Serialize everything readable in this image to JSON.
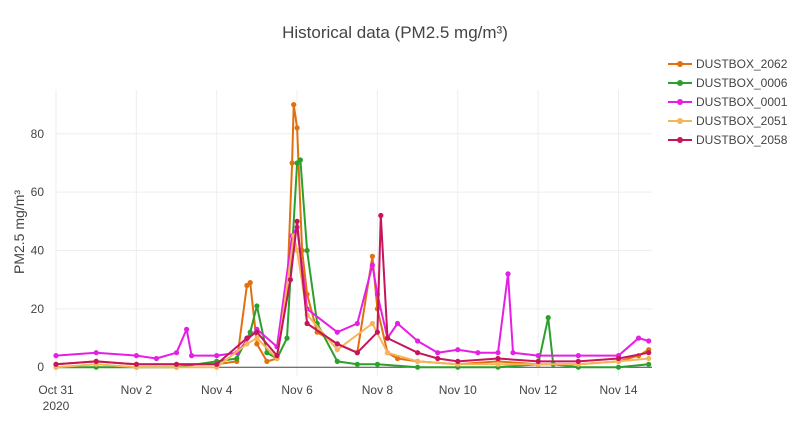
{
  "chart_data": {
    "type": "line",
    "title": "Historical data (PM2.5 mg/m³)",
    "xlabel": "",
    "ylabel": "PM2.5 mg/m³",
    "x_range": [
      "2020-10-31",
      "2020-11-14T20:00"
    ],
    "ylim": [
      -3,
      95
    ],
    "y_ticks": [
      0,
      20,
      40,
      60,
      80
    ],
    "x_ticks": [
      {
        "date": "2020-10-31",
        "label": "Oct 31",
        "sublabel": "2020"
      },
      {
        "date": "2020-11-02",
        "label": "Nov 2"
      },
      {
        "date": "2020-11-04",
        "label": "Nov 4"
      },
      {
        "date": "2020-11-06",
        "label": "Nov 6"
      },
      {
        "date": "2020-11-08",
        "label": "Nov 8"
      },
      {
        "date": "2020-11-10",
        "label": "Nov 10"
      },
      {
        "date": "2020-11-12",
        "label": "Nov 12"
      },
      {
        "date": "2020-11-14",
        "label": "Nov 14"
      }
    ],
    "grid": true,
    "legend_position": "right",
    "series": [
      {
        "name": "DUSTBOX_2062",
        "color": "#e1700f",
        "points": [
          [
            "2020-10-31T00:00",
            1
          ],
          [
            "2020-11-01T00:00",
            2
          ],
          [
            "2020-11-02T00:00",
            1
          ],
          [
            "2020-11-03T00:00",
            1
          ],
          [
            "2020-11-04T00:00",
            1
          ],
          [
            "2020-11-04T12:00",
            2
          ],
          [
            "2020-11-04T18:00",
            28
          ],
          [
            "2020-11-04T20:00",
            29
          ],
          [
            "2020-11-05T00:00",
            8
          ],
          [
            "2020-11-05T06:00",
            2
          ],
          [
            "2020-11-05T12:00",
            3
          ],
          [
            "2020-11-05T18:00",
            25
          ],
          [
            "2020-11-05T21:00",
            70
          ],
          [
            "2020-11-05T22:00",
            90
          ],
          [
            "2020-11-06T00:00",
            82
          ],
          [
            "2020-11-06T03:00",
            40
          ],
          [
            "2020-11-06T06:00",
            25
          ],
          [
            "2020-11-06T12:00",
            12
          ],
          [
            "2020-11-07T00:00",
            8
          ],
          [
            "2020-11-07T12:00",
            5
          ],
          [
            "2020-11-07T21:00",
            38
          ],
          [
            "2020-11-08T00:00",
            20
          ],
          [
            "2020-11-08T06:00",
            5
          ],
          [
            "2020-11-08T12:00",
            3
          ],
          [
            "2020-11-09T00:00",
            2
          ],
          [
            "2020-11-10T00:00",
            1
          ],
          [
            "2020-11-11T00:00",
            2
          ],
          [
            "2020-11-12T00:00",
            1
          ],
          [
            "2020-11-13T00:00",
            1
          ],
          [
            "2020-11-14T00:00",
            2
          ],
          [
            "2020-11-14T12:00",
            4
          ],
          [
            "2020-11-14T18:00",
            6
          ]
        ]
      },
      {
        "name": "DUSTBOX_0006",
        "color": "#2ca02c",
        "points": [
          [
            "2020-10-31T00:00",
            0
          ],
          [
            "2020-11-01T00:00",
            0
          ],
          [
            "2020-11-02T00:00",
            0
          ],
          [
            "2020-11-03T00:00",
            0
          ],
          [
            "2020-11-04T00:00",
            2
          ],
          [
            "2020-11-04T12:00",
            3
          ],
          [
            "2020-11-04T20:00",
            12
          ],
          [
            "2020-11-05T00:00",
            21
          ],
          [
            "2020-11-05T06:00",
            5
          ],
          [
            "2020-11-05T12:00",
            3
          ],
          [
            "2020-11-05T18:00",
            10
          ],
          [
            "2020-11-06T00:00",
            70
          ],
          [
            "2020-11-06T02:00",
            71
          ],
          [
            "2020-11-06T06:00",
            40
          ],
          [
            "2020-11-06T12:00",
            15
          ],
          [
            "2020-11-07T00:00",
            2
          ],
          [
            "2020-11-07T12:00",
            1
          ],
          [
            "2020-11-08T00:00",
            1
          ],
          [
            "2020-11-09T00:00",
            0
          ],
          [
            "2020-11-10T00:00",
            0
          ],
          [
            "2020-11-11T00:00",
            0
          ],
          [
            "2020-11-12T00:00",
            1
          ],
          [
            "2020-11-12T06:00",
            17
          ],
          [
            "2020-11-12T09:00",
            1
          ],
          [
            "2020-11-13T00:00",
            0
          ],
          [
            "2020-11-14T00:00",
            0
          ],
          [
            "2020-11-14T18:00",
            1
          ]
        ]
      },
      {
        "name": "DUSTBOX_0001",
        "color": "#e51fe5",
        "points": [
          [
            "2020-10-31T00:00",
            4
          ],
          [
            "2020-11-01T00:00",
            5
          ],
          [
            "2020-11-02T00:00",
            4
          ],
          [
            "2020-11-02T12:00",
            3
          ],
          [
            "2020-11-03T00:00",
            5
          ],
          [
            "2020-11-03T06:00",
            13
          ],
          [
            "2020-11-03T09:00",
            4
          ],
          [
            "2020-11-04T00:00",
            4
          ],
          [
            "2020-11-04T12:00",
            5
          ],
          [
            "2020-11-05T00:00",
            13
          ],
          [
            "2020-11-05T12:00",
            7
          ],
          [
            "2020-11-05T21:00",
            45
          ],
          [
            "2020-11-06T00:00",
            48
          ],
          [
            "2020-11-06T06:00",
            20
          ],
          [
            "2020-11-07T00:00",
            12
          ],
          [
            "2020-11-07T12:00",
            15
          ],
          [
            "2020-11-07T21:00",
            35
          ],
          [
            "2020-11-08T00:00",
            25
          ],
          [
            "2020-11-08T06:00",
            10
          ],
          [
            "2020-11-08T12:00",
            15
          ],
          [
            "2020-11-09T00:00",
            9
          ],
          [
            "2020-11-09T12:00",
            5
          ],
          [
            "2020-11-10T00:00",
            6
          ],
          [
            "2020-11-10T12:00",
            5
          ],
          [
            "2020-11-11T00:00",
            5
          ],
          [
            "2020-11-11T06:00",
            32
          ],
          [
            "2020-11-11T09:00",
            5
          ],
          [
            "2020-11-12T00:00",
            4
          ],
          [
            "2020-11-13T00:00",
            4
          ],
          [
            "2020-11-14T00:00",
            4
          ],
          [
            "2020-11-14T12:00",
            10
          ],
          [
            "2020-11-14T18:00",
            9
          ]
        ]
      },
      {
        "name": "DUSTBOX_2051",
        "color": "#f7b55b",
        "points": [
          [
            "2020-10-31T00:00",
            0
          ],
          [
            "2020-11-01T00:00",
            1
          ],
          [
            "2020-11-02T00:00",
            0
          ],
          [
            "2020-11-03T00:00",
            0
          ],
          [
            "2020-11-04T00:00",
            0
          ],
          [
            "2020-11-04T18:00",
            8
          ],
          [
            "2020-11-05T00:00",
            10
          ],
          [
            "2020-11-05T12:00",
            3
          ],
          [
            "2020-11-05T22:00",
            45
          ],
          [
            "2020-11-06T00:00",
            40
          ],
          [
            "2020-11-06T06:00",
            18
          ],
          [
            "2020-11-07T00:00",
            6
          ],
          [
            "2020-11-07T21:00",
            15
          ],
          [
            "2020-11-08T06:00",
            5
          ],
          [
            "2020-11-09T00:00",
            2
          ],
          [
            "2020-11-10T00:00",
            1
          ],
          [
            "2020-11-11T00:00",
            1
          ],
          [
            "2020-11-12T00:00",
            1
          ],
          [
            "2020-11-13T00:00",
            1
          ],
          [
            "2020-11-14T00:00",
            2
          ],
          [
            "2020-11-14T18:00",
            3
          ]
        ]
      },
      {
        "name": "DUSTBOX_2058",
        "color": "#c5165b",
        "points": [
          [
            "2020-10-31T00:00",
            1
          ],
          [
            "2020-11-01T00:00",
            2
          ],
          [
            "2020-11-02T00:00",
            1
          ],
          [
            "2020-11-03T00:00",
            1
          ],
          [
            "2020-11-04T00:00",
            1
          ],
          [
            "2020-11-04T18:00",
            10
          ],
          [
            "2020-11-05T00:00",
            12
          ],
          [
            "2020-11-05T12:00",
            4
          ],
          [
            "2020-11-05T20:00",
            30
          ],
          [
            "2020-11-06T00:00",
            50
          ],
          [
            "2020-11-06T06:00",
            15
          ],
          [
            "2020-11-07T00:00",
            8
          ],
          [
            "2020-11-07T12:00",
            5
          ],
          [
            "2020-11-08T00:00",
            12
          ],
          [
            "2020-11-08T02:00",
            52
          ],
          [
            "2020-11-08T06:00",
            10
          ],
          [
            "2020-11-09T00:00",
            5
          ],
          [
            "2020-11-09T12:00",
            3
          ],
          [
            "2020-11-10T00:00",
            2
          ],
          [
            "2020-11-11T00:00",
            3
          ],
          [
            "2020-11-12T00:00",
            2
          ],
          [
            "2020-11-13T00:00",
            2
          ],
          [
            "2020-11-14T00:00",
            3
          ],
          [
            "2020-11-14T18:00",
            5
          ]
        ]
      }
    ]
  }
}
